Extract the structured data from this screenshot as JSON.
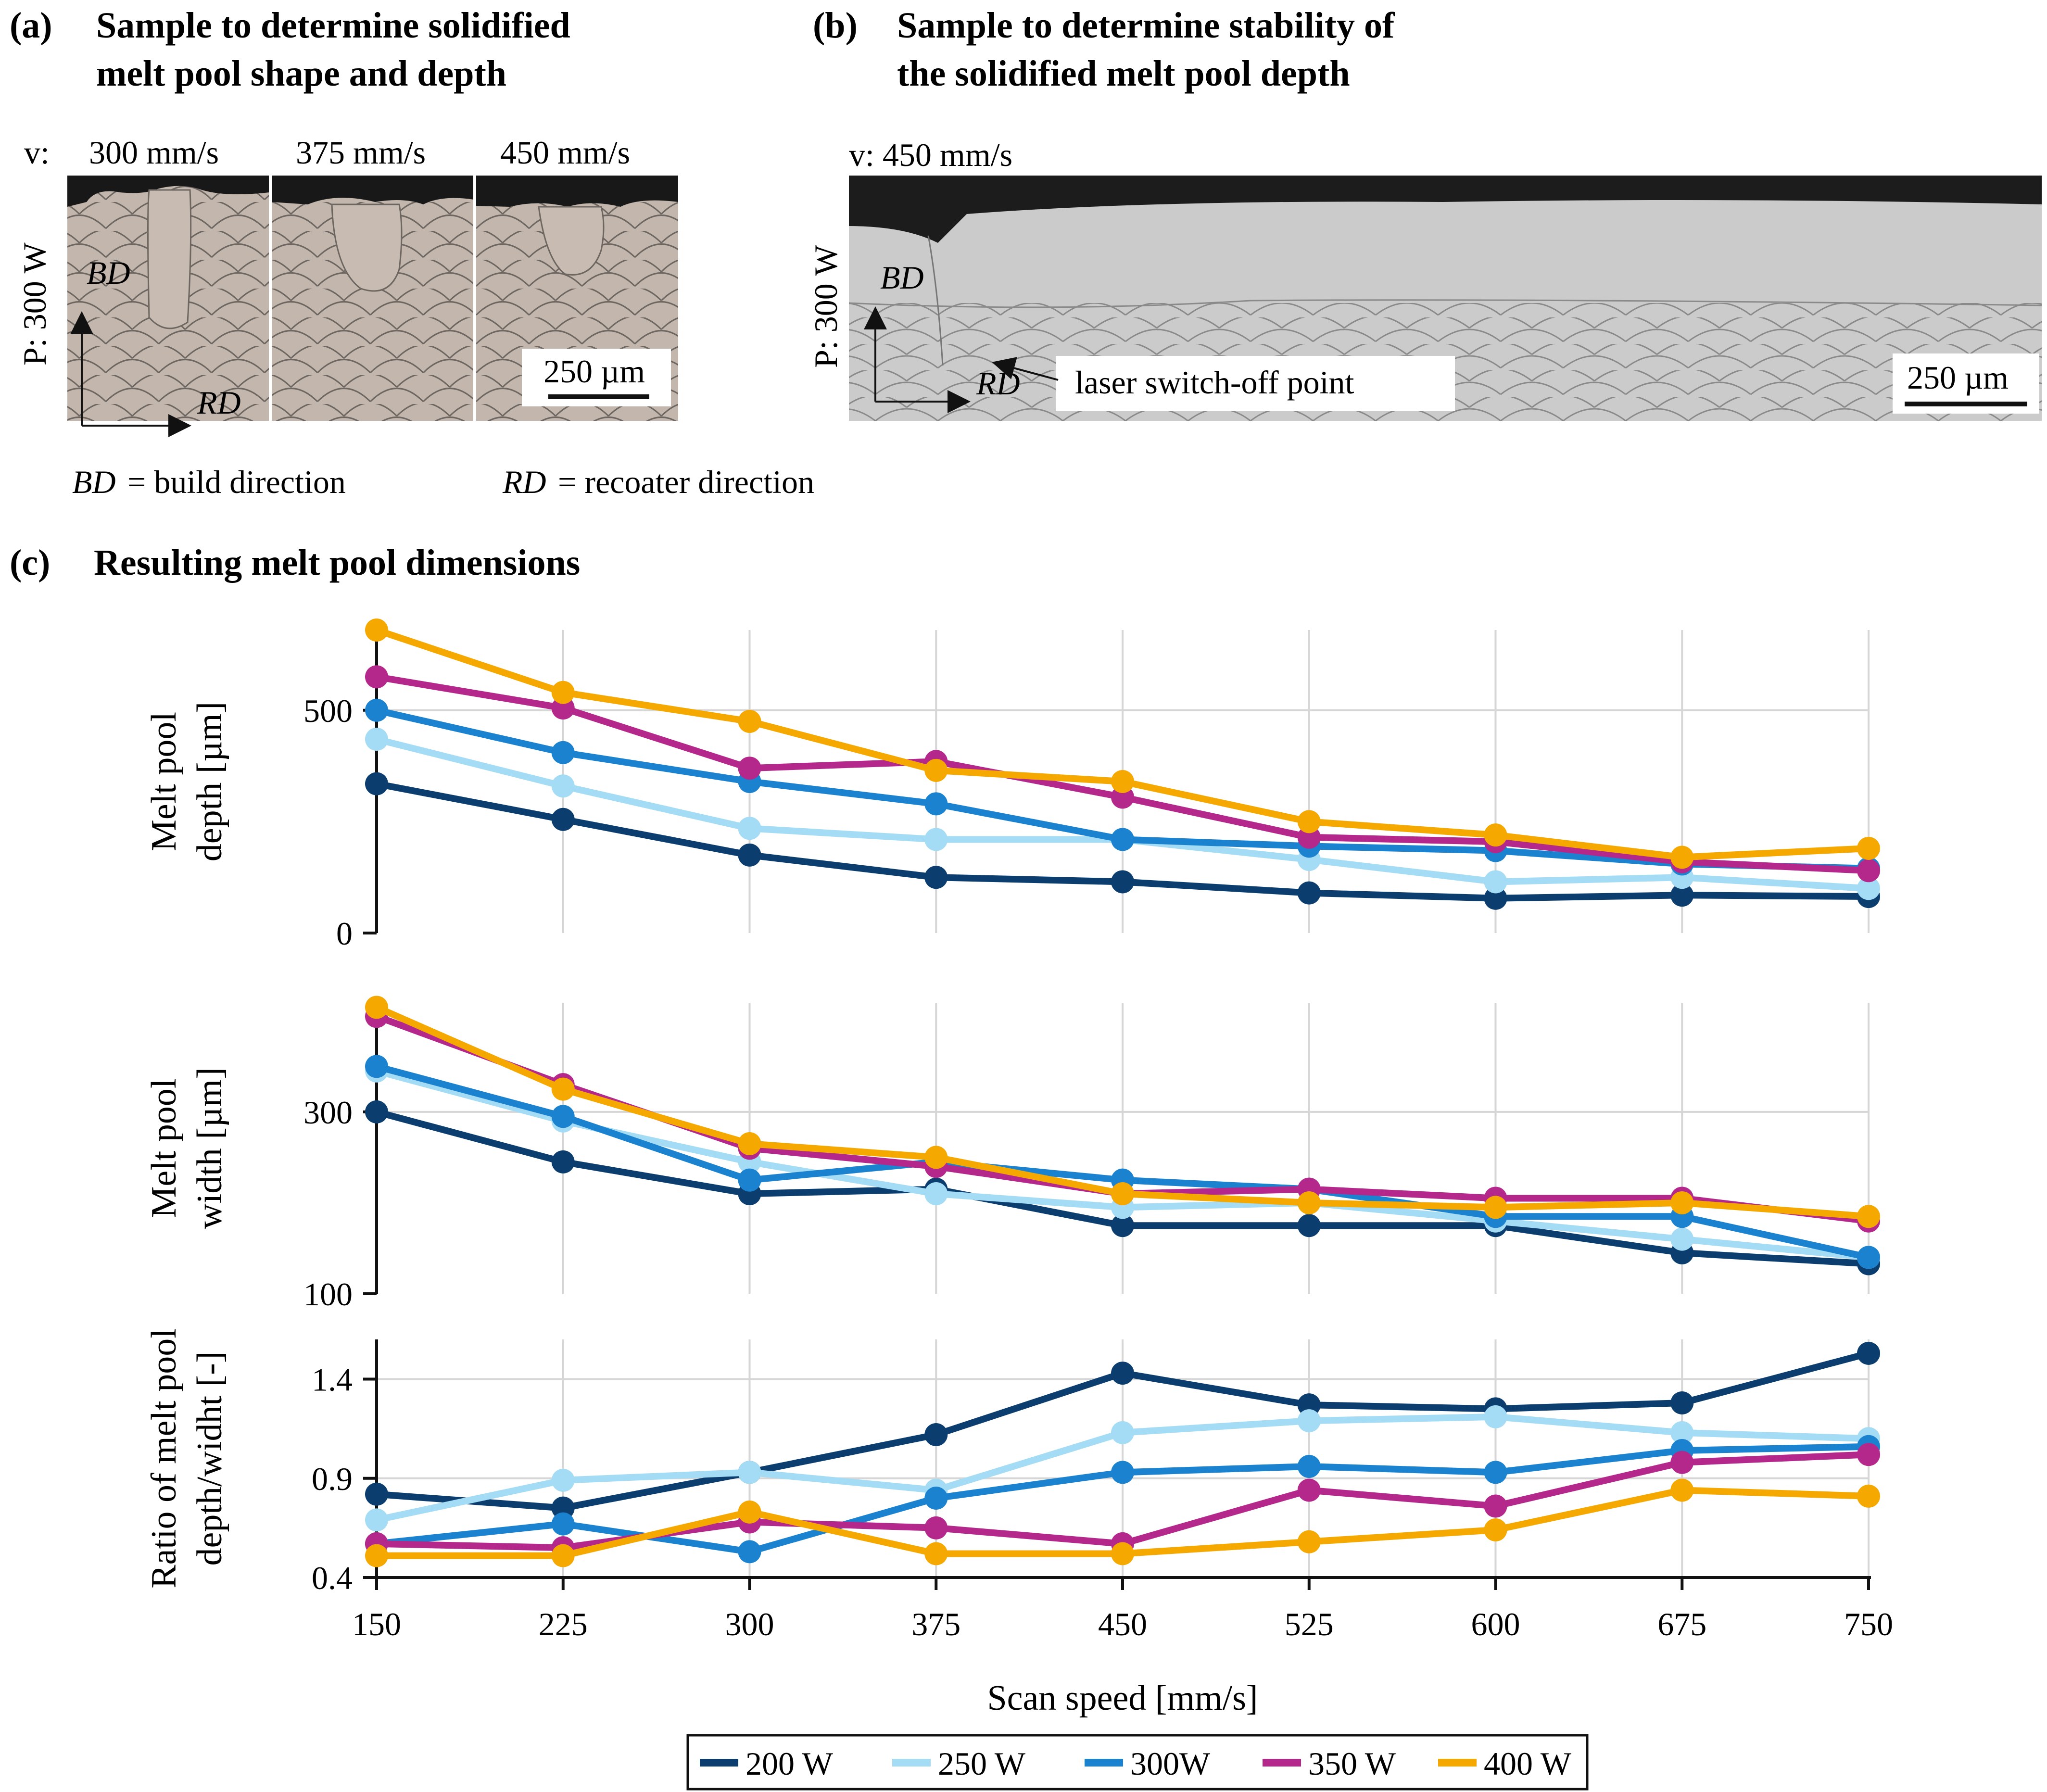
{
  "panel_a": {
    "label": "(a)",
    "title_line1": "Sample to determine solidified",
    "title_line2": "melt pool shape and depth",
    "v_prefix": "v:",
    "speeds": [
      "300 mm/s",
      "375 mm/s",
      "450 mm/s"
    ],
    "power": "P: 300 W",
    "bd": "BD",
    "rd": "RD",
    "scale": "250 µm"
  },
  "panel_b": {
    "label": "(b)",
    "title_line1": "Sample to determine stability of",
    "title_line2": "the solidified melt pool depth",
    "speed": "v: 450 mm/s",
    "power": "P: 300 W",
    "bd": "BD",
    "rd": "RD",
    "annotation": "laser switch-off point",
    "scale": "250 µm"
  },
  "abbrev": {
    "bd_sym": "BD",
    "bd_text": "= build direction",
    "rd_sym": "RD",
    "rd_text": "= recoater direction"
  },
  "panel_c": {
    "label": "(c)",
    "title": "Resulting melt pool dimensions"
  },
  "chart_data": {
    "type": "line",
    "x": [
      150,
      225,
      300,
      375,
      450,
      525,
      600,
      675,
      750
    ],
    "xlabel": "Scan speed [mm/s]",
    "series_colors": {
      "200 W": "#0b3d6e",
      "250 W": "#a5dcf5",
      "300W": "#1b82cf",
      "350 W": "#b4278b",
      "400 W": "#f5a800"
    },
    "legend": [
      "200 W",
      "250 W",
      "300W",
      "350 W",
      "400 W"
    ],
    "subplots": [
      {
        "id": "depth",
        "ylabel": [
          "Melt pool",
          "depth [µm]"
        ],
        "ylim": [
          0,
          680
        ],
        "yticks": [
          0,
          500
        ],
        "series": [
          {
            "name": "200 W",
            "values": [
              335,
              255,
              175,
              125,
              115,
              90,
              78,
              85,
              82
            ]
          },
          {
            "name": "250 W",
            "values": [
              435,
              330,
              235,
              210,
              210,
              165,
              115,
              125,
              100
            ]
          },
          {
            "name": "300W",
            "values": [
              500,
              405,
              340,
              290,
              210,
              195,
              185,
              155,
              145
            ]
          },
          {
            "name": "350 W",
            "values": [
              575,
              505,
              370,
              385,
              305,
              215,
              205,
              160,
              140
            ]
          },
          {
            "name": "400 W",
            "values": [
              680,
              540,
              475,
              365,
              340,
              250,
              220,
              170,
              190
            ]
          }
        ]
      },
      {
        "id": "width",
        "ylabel": [
          "Melt pool",
          "width [µm]"
        ],
        "ylim": [
          100,
          420
        ],
        "yticks": [
          100,
          300
        ],
        "series": [
          {
            "name": "200 W",
            "values": [
              300,
              245,
              210,
              215,
              175,
              175,
              175,
              145,
              133
            ]
          },
          {
            "name": "250 W",
            "values": [
              345,
              290,
              245,
              210,
              195,
              200,
              180,
              160,
              140
            ]
          },
          {
            "name": "300W",
            "values": [
              350,
              295,
              225,
              245,
              225,
              215,
              185,
              185,
              140
            ]
          },
          {
            "name": "350 W",
            "values": [
              405,
              330,
              260,
              240,
              210,
              215,
              205,
              205,
              180
            ]
          },
          {
            "name": "400 W",
            "values": [
              415,
              325,
              265,
              250,
              210,
              200,
              195,
              200,
              185
            ]
          }
        ]
      },
      {
        "id": "ratio",
        "ylabel": [
          "Ratio of melt pool",
          "depth/widht [-]"
        ],
        "ylim": [
          0.4,
          1.6
        ],
        "yticks": [
          0.4,
          0.9,
          1.4
        ],
        "series": [
          {
            "name": "200 W",
            "values": [
              0.82,
              0.75,
              0.93,
              1.12,
              1.43,
              1.27,
              1.25,
              1.28,
              1.53
            ]
          },
          {
            "name": "250 W",
            "values": [
              0.69,
              0.89,
              0.93,
              0.84,
              1.13,
              1.19,
              1.21,
              1.13,
              1.1
            ]
          },
          {
            "name": "300W",
            "values": [
              0.57,
              0.67,
              0.53,
              0.8,
              0.93,
              0.96,
              0.93,
              1.04,
              1.06
            ]
          },
          {
            "name": "350 W",
            "values": [
              0.57,
              0.55,
              0.68,
              0.65,
              0.57,
              0.84,
              0.76,
              0.98,
              1.02
            ]
          },
          {
            "name": "400 W",
            "values": [
              0.51,
              0.51,
              0.73,
              0.52,
              0.52,
              0.58,
              0.64,
              0.84,
              0.81
            ]
          }
        ]
      }
    ]
  }
}
